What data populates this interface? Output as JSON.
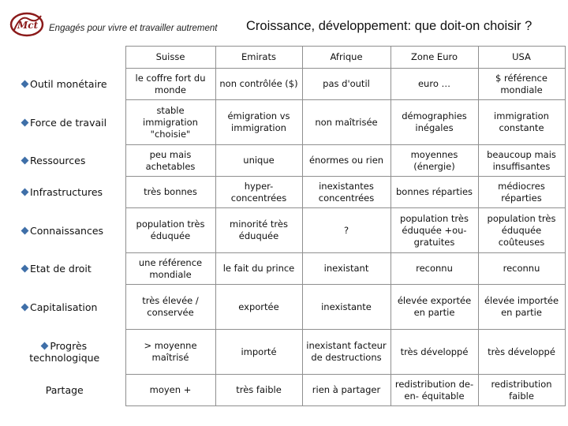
{
  "header": {
    "logo_text": "Mct",
    "tagline": "Engagés pour vivre et travailler autrement",
    "title": "Croissance, développement: que doit-on choisir ?"
  },
  "columns": [
    "Suisse",
    "Emirats",
    "Afrique",
    "Zone Euro",
    "USA"
  ],
  "rows": [
    {
      "label": "Outil monétaire",
      "cells": [
        "le coffre fort du monde",
        "non contrôlée ($)",
        "pas d'outil",
        "euro …",
        "$ référence mondiale"
      ]
    },
    {
      "label": "Force de travail",
      "cells": [
        "stable immigration \"choisie\"",
        "émigration vs immigration",
        "non maîtrisée",
        "démographies inégales",
        "immigration constante"
      ]
    },
    {
      "label": "Ressources",
      "cells": [
        "peu mais achetables",
        "unique",
        "énormes ou rien",
        "moyennes (énergie)",
        "beaucoup mais insuffisantes"
      ]
    },
    {
      "label": "Infrastructures",
      "cells": [
        "très bonnes",
        "hyper-concentrées",
        "inexistantes concentrées",
        "bonnes réparties",
        "médiocres réparties"
      ]
    },
    {
      "label": "Connaissances",
      "cells": [
        "population très éduquée",
        "minorité très éduquée",
        "?",
        "population très éduquée +ou- gratuites",
        "population très éduquée coûteuses"
      ]
    },
    {
      "label": "Etat de droit",
      "cells": [
        "une référence mondiale",
        "le fait du prince",
        "inexistant",
        "reconnu",
        "reconnu"
      ]
    },
    {
      "label": "Capitalisation",
      "cells": [
        "très élevée / conservée",
        "exportée",
        "inexistante",
        "élevée exportée en partie",
        "élevée importée en partie"
      ]
    },
    {
      "label": "Progrès technologique",
      "cells": [
        "> moyenne maîtrisé",
        "importé",
        "inexistant facteur de destructions",
        "très développé",
        "très développé"
      ]
    },
    {
      "label": "Partage",
      "cells": [
        "moyen +",
        "très faible",
        "rien à partager",
        "redistribution de-en- équitable",
        "redistribution faible"
      ]
    }
  ],
  "colors": {
    "bullet": "#3f6fa8",
    "logo_red": "#8b1a1a",
    "border": "#8f8f8f"
  }
}
